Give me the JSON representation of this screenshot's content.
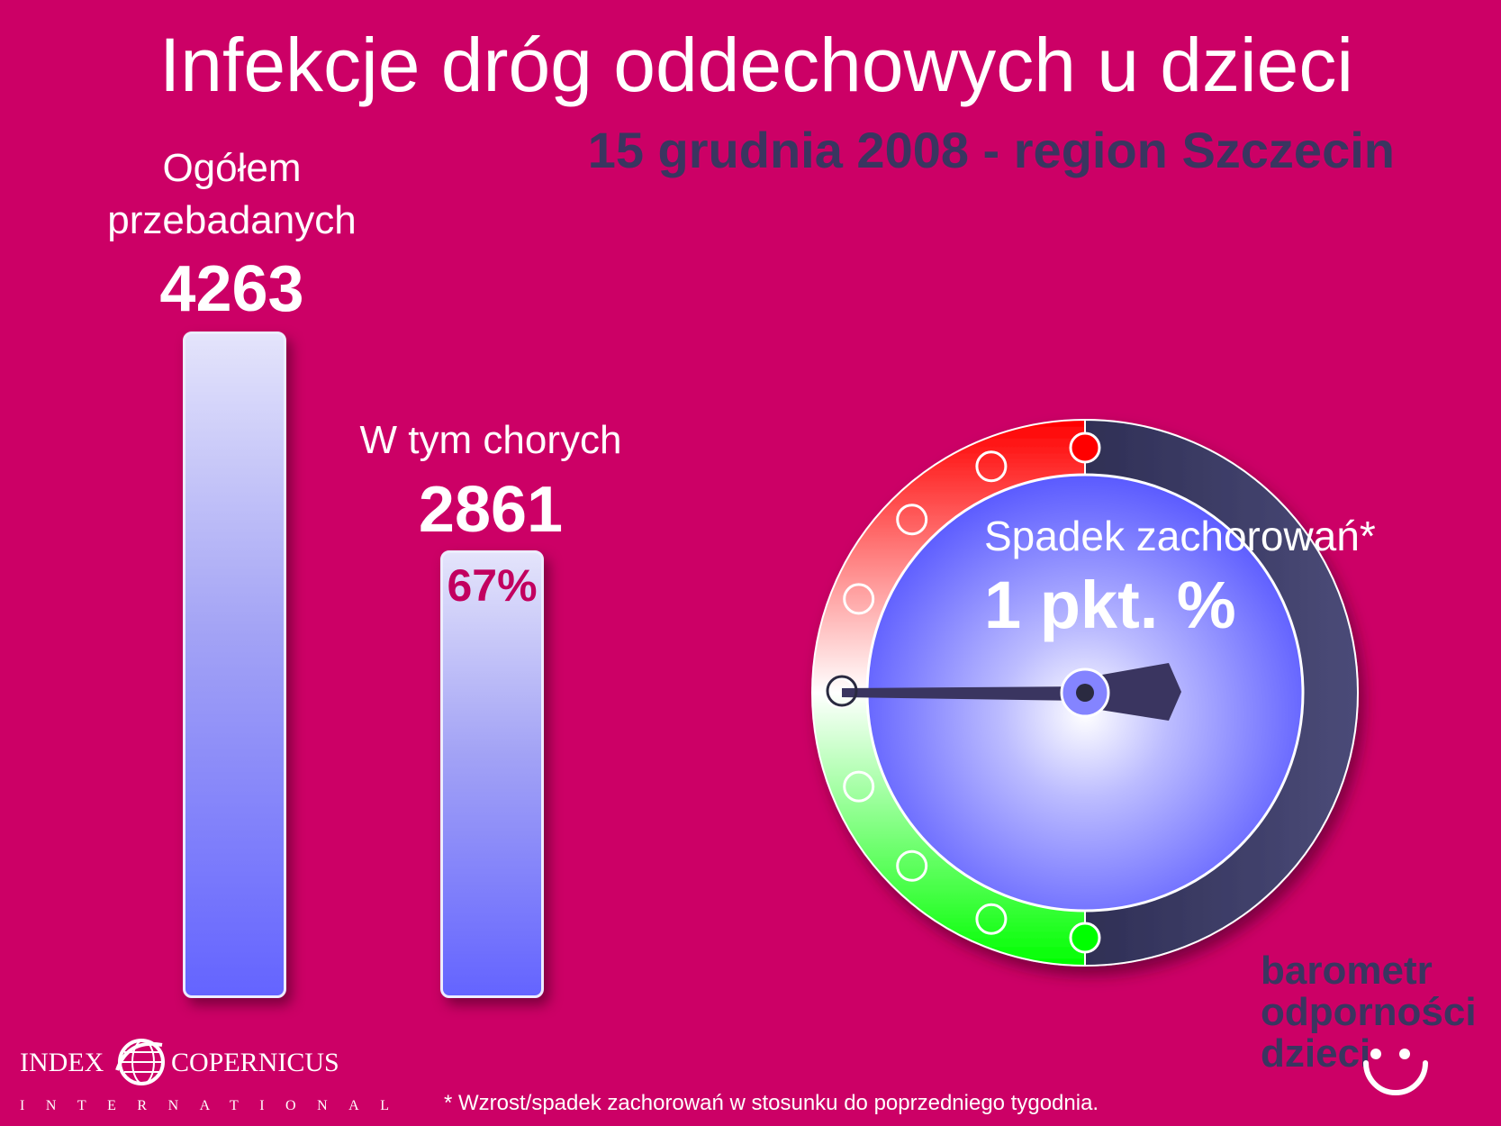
{
  "title": "Infekcje dróg oddechowych u dzieci",
  "subtitle": "15 grudnia 2008 - region Szczecin",
  "chart_data": [
    {
      "type": "bar",
      "categories": [
        "Ogółem przebadanych",
        "W tym chorych"
      ],
      "values": [
        4263,
        2861
      ],
      "value_labels": [
        "4263",
        "2861"
      ],
      "percent_label": "67%",
      "label_total_line1": "Ogółem",
      "label_total_line2": "przebadanych",
      "label_sick": "W tym chorych"
    },
    {
      "type": "gauge",
      "label": "Spadek zachorowań*",
      "value_label": "1 pkt. %",
      "value": -1,
      "colors": {
        "increase": "#ff0000",
        "decrease": "#00ff00",
        "face": "#6a6aff",
        "rim": "#3b3b66"
      }
    }
  ],
  "footnote": "* Wzrost/spadek zachorowań w stosunku do poprzedniego tygodnia.",
  "logo": {
    "left": "INDEX",
    "right": "COPERNICUS",
    "sub": "INTERNATIONAL"
  },
  "brand": {
    "line1": "barometr",
    "line2": "odporności",
    "line3": "dzieci"
  },
  "colors": {
    "background": "#cc0066",
    "accent_text": "#3a3560",
    "bar_top": "#e4e4fb",
    "bar_bottom": "#6464ff"
  }
}
